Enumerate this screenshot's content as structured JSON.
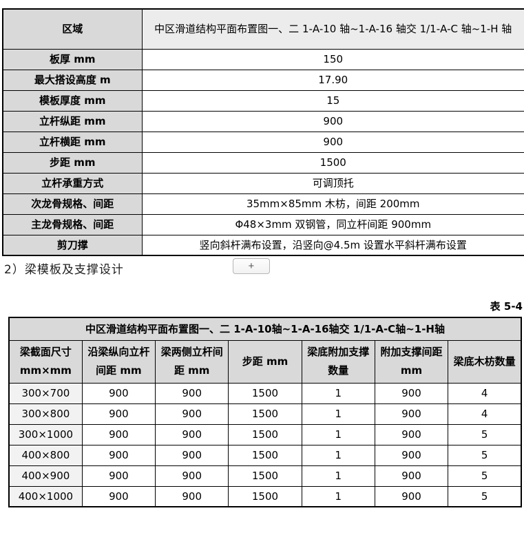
{
  "page": {
    "section_heading": "2）梁模板及支撑设计",
    "table_caption": "表 5-4",
    "plus_label": "+"
  },
  "colors": {
    "header_shade": "#d9d9d9",
    "region_shade": "#ececec",
    "first_col_shade": "#f2f2f2",
    "border": "#000000"
  },
  "table1": {
    "rows": [
      {
        "label": "区域",
        "value": "中区滑道结构平面布置图一、二 1-A-10 轴~1-A-16 轴交 1/1-A-C 轴~1-H 轴"
      },
      {
        "label": "板厚 mm",
        "value": "150"
      },
      {
        "label": "最大搭设高度 m",
        "value": "17.90"
      },
      {
        "label": "模板厚度 mm",
        "value": "15"
      },
      {
        "label": "立杆纵距 mm",
        "value": "900"
      },
      {
        "label": "立杆横距 mm",
        "value": "900"
      },
      {
        "label": "步距 mm",
        "value": "1500"
      },
      {
        "label": "立杆承重方式",
        "value": "可调顶托"
      },
      {
        "label": "次龙骨规格、间距",
        "value": "35mm×85mm 木枋，间距 200mm"
      },
      {
        "label": "主龙骨规格、间距",
        "value": "Φ48×3mm 双钢管，同立杆间距 900mm"
      },
      {
        "label": "剪刀撑",
        "value": "竖向斜杆满布设置，沿竖向@4.5m 设置水平斜杆满布设置"
      }
    ]
  },
  "table2": {
    "title": "中区滑道结构平面布置图一、二 1-A-10轴~1-A-16轴交 1/1-A-C轴~1-H轴",
    "columns": [
      "梁截面尺寸 mm×mm",
      "沿梁纵向立杆间距 mm",
      "梁两侧立杆间距 mm",
      "步距 mm",
      "梁底附加支撑数量",
      "附加支撑间距 mm",
      "梁底木枋数量"
    ],
    "rows": [
      [
        "300×700",
        "900",
        "900",
        "1500",
        "1",
        "900",
        "4"
      ],
      [
        "300×800",
        "900",
        "900",
        "1500",
        "1",
        "900",
        "4"
      ],
      [
        "300×1000",
        "900",
        "900",
        "1500",
        "1",
        "900",
        "5"
      ],
      [
        "400×800",
        "900",
        "900",
        "1500",
        "1",
        "900",
        "5"
      ],
      [
        "400×900",
        "900",
        "900",
        "1500",
        "1",
        "900",
        "5"
      ],
      [
        "400×1000",
        "900",
        "900",
        "1500",
        "1",
        "900",
        "5"
      ]
    ]
  }
}
